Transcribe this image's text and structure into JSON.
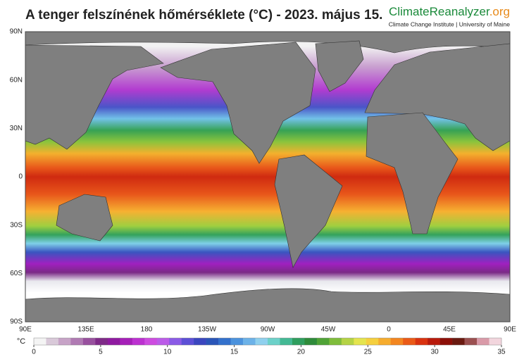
{
  "header": {
    "title": "A tenger felszínének hőmérséklete (°C) - 2023. május 15.",
    "brand_main": "ClimateReanalyzer",
    "brand_suffix": ".org",
    "subtitle": "Climate Change Institute | University of Maine"
  },
  "map": {
    "lat_labels": [
      "90N",
      "60N",
      "30N",
      "0",
      "30S",
      "60S",
      "90S"
    ],
    "lon_labels": [
      "90E",
      "135E",
      "180",
      "135W",
      "90W",
      "45W",
      "0",
      "45E",
      "90E"
    ]
  },
  "colorbar": {
    "unit": "°C",
    "range": [
      0,
      35
    ],
    "ticks": [
      0,
      5,
      10,
      15,
      20,
      25,
      30,
      35
    ],
    "colors": [
      "#f4f4f4",
      "#d9c9d9",
      "#c7a3c7",
      "#b07ab3",
      "#98509e",
      "#7f2a88",
      "#8f1aa0",
      "#a51fb8",
      "#bc31d0",
      "#cd4be0",
      "#bb5be8",
      "#8a5ae6",
      "#5c4fd6",
      "#3a46bf",
      "#2a55b8",
      "#3371cc",
      "#4b92dd",
      "#6cb2e8",
      "#8fd0ee",
      "#6cd1c9",
      "#43b994",
      "#2f9e5e",
      "#2e8b3a",
      "#4fa336",
      "#7fbd3b",
      "#b5d345",
      "#e4e44e",
      "#f5cf3e",
      "#f6ac2e",
      "#f3861f",
      "#ea5a17",
      "#d9320f",
      "#b81a0b",
      "#8c0f08",
      "#6a1a10",
      "#9b5050",
      "#d99aa8",
      "#f2d5dd"
    ]
  }
}
